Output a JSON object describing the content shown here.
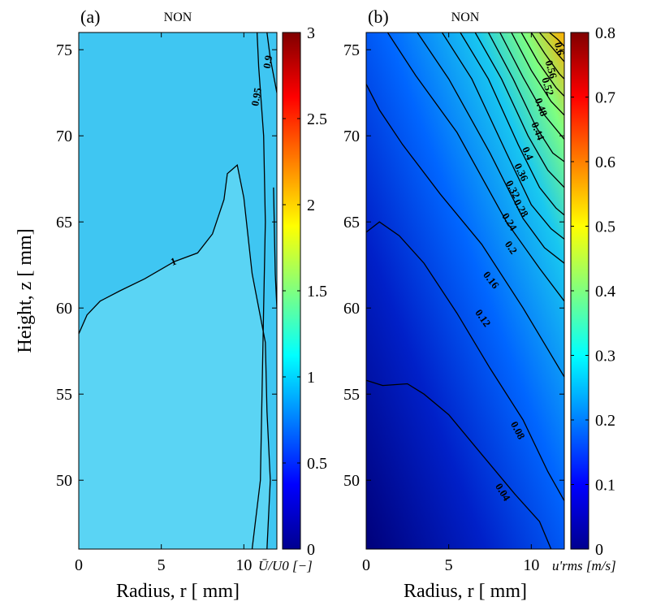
{
  "figure": {
    "shared_xlabel": "Radius, r [ mm]",
    "shared_ylabel": "Height, z [ mm]"
  },
  "chart_data": [
    {
      "type": "contour",
      "panel_label": "(a)",
      "title": "NON",
      "xlabel": "Radius, r [ mm]",
      "ylabel": "Height, z [ mm]",
      "xlim": [
        0,
        12
      ],
      "ylim": [
        46,
        76
      ],
      "xticks": [
        0,
        5,
        10
      ],
      "yticks": [
        50,
        55,
        60,
        65,
        70,
        75
      ],
      "colorbar": {
        "label": "Ū/U0 [−]",
        "range": [
          0,
          3
        ],
        "ticks": [
          0,
          0.5,
          1,
          1.5,
          2,
          2.5,
          3
        ]
      },
      "fill_colors": {
        "background": "#3fc6f2",
        "inner_region": "#5ad4f4"
      },
      "contours": [
        {
          "level": 1,
          "label": "1",
          "points": [
            [
              0,
              58.5
            ],
            [
              0.5,
              59.6
            ],
            [
              1.3,
              60.4
            ],
            [
              2.5,
              61.0
            ],
            [
              4,
              61.7
            ],
            [
              5.8,
              62.7
            ],
            [
              7.2,
              63.2
            ],
            [
              8.1,
              64.3
            ],
            [
              8.8,
              66.3
            ],
            [
              9.0,
              67.8
            ],
            [
              9.6,
              68.3
            ],
            [
              10.0,
              66.4
            ],
            [
              10.5,
              62.0
            ],
            [
              11.3,
              58.0
            ],
            [
              11.4,
              54.0
            ],
            [
              11.6,
              50.0
            ],
            [
              11.4,
              46.0
            ]
          ]
        },
        {
          "level": 0.95,
          "label": "0.95",
          "points": [
            [
              10.5,
              46.0
            ],
            [
              11.0,
              50.0
            ],
            [
              11.1,
              55.0
            ],
            [
              11.2,
              60.0
            ],
            [
              11.3,
              65.0
            ],
            [
              11.2,
              70.0
            ],
            [
              10.9,
              74.0
            ],
            [
              10.8,
              76.0
            ]
          ]
        },
        {
          "level": 0.9,
          "label": "0.9",
          "points": [
            [
              11.4,
              76.0
            ],
            [
              11.6,
              74.5
            ],
            [
              11.9,
              73.0
            ],
            [
              12.0,
              72.5
            ]
          ]
        },
        {
          "level": 0.85,
          "label": "",
          "points": [
            [
              11.8,
              67.0
            ],
            [
              11.9,
              62.0
            ],
            [
              12.0,
              60.0
            ]
          ]
        }
      ]
    },
    {
      "type": "contour",
      "panel_label": "(b)",
      "title": "NON",
      "xlabel": "Radius, r [ mm]",
      "ylabel": "",
      "xlim": [
        0,
        12
      ],
      "ylim": [
        46,
        76
      ],
      "xticks": [
        0,
        5,
        10
      ],
      "yticks": [
        50,
        55,
        60,
        65,
        70,
        75
      ],
      "colorbar": {
        "label": "u'rms [m/s]",
        "range": [
          0,
          0.8
        ],
        "ticks": [
          0,
          0.1,
          0.2,
          0.3,
          0.4,
          0.5,
          0.6,
          0.7,
          0.8
        ]
      },
      "levels": [
        0.04,
        0.08,
        0.12,
        0.16,
        0.2,
        0.24,
        0.28,
        0.32,
        0.36,
        0.4,
        0.44,
        0.48,
        0.52,
        0.56,
        0.6
      ],
      "contour_labels": [
        "0.04",
        "0.08",
        "0.12",
        "0.16",
        "0.2",
        "0.24",
        "0.28",
        "0.32",
        "0.36",
        "0.4",
        "0.44",
        "0.48",
        "0.52",
        "0.56",
        "0.6"
      ],
      "contours": [
        {
          "level": 0.04,
          "points": [
            [
              0,
              55.8
            ],
            [
              1,
              55.5
            ],
            [
              2.5,
              55.6
            ],
            [
              3.5,
              55.0
            ],
            [
              5,
              53.8
            ],
            [
              7,
              51.5
            ],
            [
              9,
              49.2
            ],
            [
              10.5,
              47.6
            ],
            [
              11.2,
              46.0
            ]
          ]
        },
        {
          "level": 0.08,
          "points": [
            [
              0,
              64.4
            ],
            [
              0.8,
              65.0
            ],
            [
              2,
              64.2
            ],
            [
              3.5,
              62.6
            ],
            [
              5.5,
              59.7
            ],
            [
              7.5,
              56.5
            ],
            [
              9.5,
              53.5
            ],
            [
              11,
              50.5
            ],
            [
              12,
              48.8
            ]
          ]
        },
        {
          "level": 0.12,
          "points": [
            [
              0,
              73.0
            ],
            [
              0.8,
              71.5
            ],
            [
              2.2,
              69.5
            ],
            [
              4.5,
              66.6
            ],
            [
              7,
              63.7
            ],
            [
              9.5,
              60.0
            ],
            [
              11,
              57.6
            ],
            [
              12,
              56.0
            ]
          ]
        },
        {
          "level": 0.16,
          "points": [
            [
              1.3,
              76.0
            ],
            [
              3,
              73.5
            ],
            [
              5.5,
              70.2
            ],
            [
              8.5,
              65.0
            ],
            [
              10.5,
              62.3
            ],
            [
              12,
              60.4
            ]
          ]
        },
        {
          "level": 0.2,
          "points": [
            [
              3.1,
              76.0
            ],
            [
              5,
              73.3
            ],
            [
              7.5,
              69.0
            ],
            [
              9.5,
              65.2
            ],
            [
              10.8,
              63.5
            ],
            [
              12,
              62.6
            ]
          ]
        },
        {
          "level": 0.24,
          "points": [
            [
              4.6,
              76.0
            ],
            [
              6.4,
              73.3
            ],
            [
              8.5,
              69.0
            ],
            [
              10,
              66.0
            ],
            [
              11.2,
              64.6
            ],
            [
              12,
              64.0
            ]
          ]
        },
        {
          "level": 0.28,
          "points": [
            [
              5.7,
              76.0
            ],
            [
              7.4,
              73.3
            ],
            [
              9.2,
              69.5
            ],
            [
              10.5,
              67.0
            ],
            [
              11.5,
              65.8
            ],
            [
              12,
              65.4
            ]
          ]
        },
        {
          "level": 0.32,
          "points": [
            [
              6.6,
              76.0
            ],
            [
              8.2,
              73.3
            ],
            [
              9.8,
              70.0
            ],
            [
              11,
              68.0
            ],
            [
              12,
              67.0
            ]
          ]
        },
        {
          "level": 0.36,
          "points": [
            [
              7.4,
              76.0
            ],
            [
              8.9,
              73.3
            ],
            [
              10.3,
              70.5
            ],
            [
              11.3,
              69.0
            ],
            [
              12,
              68.5
            ]
          ]
        },
        {
          "level": 0.4,
          "points": [
            [
              8.1,
              76.0
            ],
            [
              9.5,
              73.4
            ],
            [
              10.8,
              71.2
            ],
            [
              12,
              69.8
            ]
          ]
        },
        {
          "level": 0.44,
          "points": [
            [
              8.8,
              76.0
            ],
            [
              10.0,
              73.8
            ],
            [
              11.2,
              72.0
            ],
            [
              12,
              71.2
            ]
          ]
        },
        {
          "level": 0.48,
          "points": [
            [
              9.4,
              76.0
            ],
            [
              10.4,
              74.3
            ],
            [
              11.5,
              72.8
            ],
            [
              12,
              72.3
            ]
          ]
        },
        {
          "level": 0.52,
          "points": [
            [
              10.0,
              76.0
            ],
            [
              10.8,
              74.8
            ],
            [
              11.7,
              73.6
            ],
            [
              12,
              73.3
            ]
          ]
        },
        {
          "level": 0.56,
          "points": [
            [
              10.5,
              76.0
            ],
            [
              11.2,
              75.2
            ],
            [
              12,
              74.3
            ]
          ]
        },
        {
          "level": 0.6,
          "points": [
            [
              11.1,
              76.0
            ],
            [
              11.6,
              75.6
            ],
            [
              12,
              75.2
            ]
          ]
        }
      ]
    }
  ]
}
